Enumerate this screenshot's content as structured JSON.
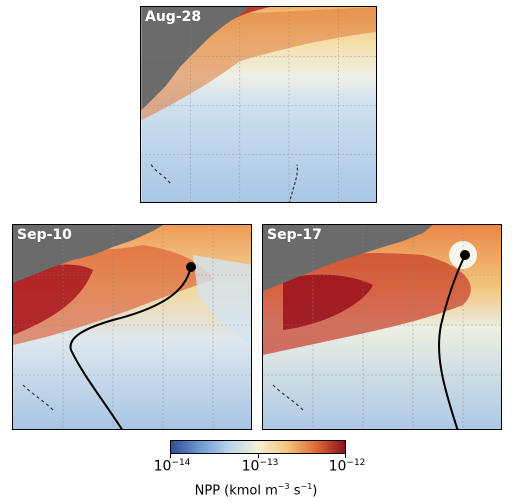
{
  "panels": [
    {
      "label": "Aug-28",
      "track": false
    },
    {
      "label": "Sep-10",
      "track": true
    },
    {
      "label": "Sep-17",
      "track": true
    }
  ],
  "colorbar": {
    "ticks": [
      {
        "base": "10",
        "exp": "−14"
      },
      {
        "base": "10",
        "exp": "−13"
      },
      {
        "base": "10",
        "exp": "−12"
      }
    ],
    "title_prefix": "NPP (kmol m",
    "title_exp1": "−3",
    "title_mid": " s",
    "title_exp2": "−1",
    "title_suffix": ")",
    "scale": "log",
    "range": [
      1e-14,
      1e-12
    ],
    "colors": [
      "#2f4b9b",
      "#6f9bd0",
      "#b9d2ea",
      "#f4f1d6",
      "#f4c47d",
      "#df6b35",
      "#8a1020"
    ]
  },
  "colors": {
    "land": "#6b6b6b",
    "track": "#000000",
    "grid": "#888888"
  }
}
